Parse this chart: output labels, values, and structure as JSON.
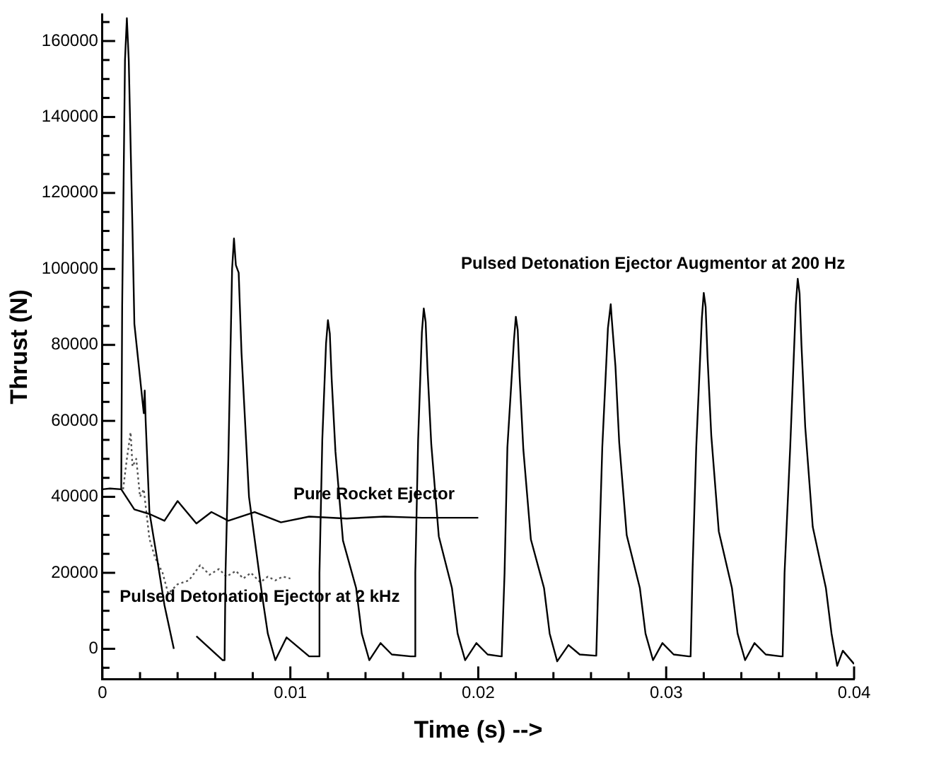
{
  "chart_data": {
    "type": "line",
    "xlabel": "Time (s) -->",
    "ylabel": "Thrust (N)",
    "xlim": [
      0,
      0.04
    ],
    "ylim": [
      -8000,
      167000
    ],
    "xticks": [
      0,
      {
        "value": 0.002,
        "label": null
      },
      {
        "value": 0.004,
        "label": null
      },
      {
        "value": 0.006,
        "label": null
      },
      {
        "value": 0.008,
        "label": null
      },
      0.01,
      {
        "value": 0.012,
        "label": null
      },
      {
        "value": 0.014,
        "label": null
      },
      {
        "value": 0.016,
        "label": null
      },
      {
        "value": 0.018,
        "label": null
      },
      0.02,
      {
        "value": 0.022,
        "label": null
      },
      {
        "value": 0.024,
        "label": null
      },
      {
        "value": 0.026,
        "label": null
      },
      {
        "value": 0.028,
        "label": null
      },
      0.03,
      {
        "value": 0.032,
        "label": null
      },
      {
        "value": 0.034,
        "label": null
      },
      {
        "value": 0.036,
        "label": null
      },
      {
        "value": 0.038,
        "label": null
      },
      0.04
    ],
    "yticks": [
      {
        "value": -5000,
        "label": null
      },
      0,
      {
        "value": 5000,
        "label": null
      },
      {
        "value": 10000,
        "label": null
      },
      {
        "value": 15000,
        "label": null
      },
      20000,
      {
        "value": 25000,
        "label": null
      },
      {
        "value": 30000,
        "label": null
      },
      {
        "value": 35000,
        "label": null
      },
      40000,
      {
        "value": 45000,
        "label": null
      },
      {
        "value": 50000,
        "label": null
      },
      {
        "value": 55000,
        "label": null
      },
      60000,
      {
        "value": 65000,
        "label": null
      },
      {
        "value": 70000,
        "label": null
      },
      {
        "value": 75000,
        "label": null
      },
      80000,
      {
        "value": 85000,
        "label": null
      },
      {
        "value": 90000,
        "label": null
      },
      {
        "value": 95000,
        "label": null
      },
      100000,
      {
        "value": 105000,
        "label": null
      },
      {
        "value": 110000,
        "label": null
      },
      {
        "value": 115000,
        "label": null
      },
      120000,
      {
        "value": 125000,
        "label": null
      },
      {
        "value": 130000,
        "label": null
      },
      {
        "value": 135000,
        "label": null
      },
      140000,
      {
        "value": 145000,
        "label": null
      },
      {
        "value": 150000,
        "label": null
      },
      {
        "value": 155000,
        "label": null
      },
      160000,
      {
        "value": 165000,
        "label": null
      }
    ],
    "grid": false,
    "legend": false,
    "marker": "none",
    "series": [
      {
        "name": "Pulsed Detonation Ejector Augmentor at 200 Hz",
        "color": "#000000",
        "line_style": "solid",
        "x": [
          0.001,
          0.00105,
          0.0012,
          0.0013,
          0.0014,
          0.0016,
          0.0017,
          0.0022,
          0.00225,
          0.0023,
          0.0025,
          0.0029,
          0.0033,
          0.0038,
          0.0046,
          0.0048,
          0.005,
          0.0064,
          0.0065,
          0.00655,
          0.0067,
          0.0069,
          0.007,
          0.0071,
          0.00725,
          0.0074,
          0.0078,
          0.0085,
          0.0088,
          0.0092,
          0.0098,
          0.011,
          0.0115,
          0.01155,
          0.0117,
          0.0119,
          0.012,
          0.0121,
          0.0122,
          0.0124,
          0.0128,
          0.0135,
          0.0138,
          0.0142,
          0.0148,
          0.0154,
          0.0164,
          0.0166,
          0.01665,
          0.0168,
          0.017,
          0.0171,
          0.0172,
          0.0173,
          0.0175,
          0.0179,
          0.0186,
          0.0189,
          0.0193,
          0.0199,
          0.0205,
          0.0212,
          0.02125,
          0.0214,
          0.02155,
          0.0219,
          0.022,
          0.0221,
          0.0222,
          0.0224,
          0.0228,
          0.0235,
          0.0238,
          0.0242,
          0.0248,
          0.0254,
          0.0262,
          0.02628,
          0.0264,
          0.0266,
          0.0269,
          0.02705,
          0.0271,
          0.0273,
          0.0275,
          0.0279,
          0.0286,
          0.0289,
          0.0293,
          0.0298,
          0.0304,
          0.0312,
          0.0313,
          0.0314,
          0.0316,
          0.0319,
          0.032,
          0.0321,
          0.0322,
          0.0324,
          0.0328,
          0.0335,
          0.0338,
          0.0342,
          0.0347,
          0.0353,
          0.0361,
          0.0362,
          0.0363,
          0.0366,
          0.0369,
          0.037,
          0.0371,
          0.0372,
          0.0374,
          0.0378,
          0.0385,
          0.0388,
          0.0391,
          0.0394,
          0.04
        ],
        "values": [
          42000,
          90000,
          155000,
          166000,
          155000,
          110000,
          85500,
          62000,
          68000,
          60000,
          36000,
          24000,
          11500,
          0,
          null,
          null,
          3300,
          -3000,
          -3000,
          20000,
          50000,
          100000,
          108000,
          101000,
          99000,
          78000,
          40000,
          14000,
          4000,
          -3000,
          3000,
          -2000,
          -2000,
          20000,
          55000,
          80400,
          86500,
          83000,
          70900,
          51900,
          28500,
          16000,
          4000,
          -3000,
          1500,
          -1500,
          -2000,
          -2000,
          20000,
          55000,
          83300,
          89600,
          86000,
          73500,
          53800,
          29600,
          16000,
          4000,
          -3000,
          1500,
          -1500,
          -2000,
          -1500,
          20000,
          53000,
          81300,
          87400,
          83900,
          71700,
          52400,
          28800,
          16000,
          4000,
          -3300,
          1000,
          -1500,
          -1800,
          -1800,
          20000,
          53000,
          84400,
          90700,
          87100,
          74400,
          54400,
          29900,
          16000,
          4000,
          -3000,
          1500,
          -1500,
          -2000,
          -2000,
          20000,
          53000,
          87100,
          93700,
          90000,
          76800,
          56200,
          30900,
          16000,
          4000,
          -3000,
          1500,
          -1500,
          -2000,
          -2000,
          20000,
          53000,
          90600,
          97400,
          93500,
          79900,
          58400,
          32100,
          16000,
          4000,
          -4500,
          -500,
          -4000
        ]
      },
      {
        "name": "Pure Rocket Ejector",
        "color": "#000000",
        "line_style": "solid",
        "x": [
          0,
          0.0004,
          0.001,
          0.0017,
          0.0025,
          0.0033,
          0.004,
          0.005,
          0.0058,
          0.0067,
          0.0081,
          0.0095,
          0.011,
          0.013,
          0.015,
          0.017,
          0.02
        ],
        "values": [
          42000,
          42200,
          42000,
          36700,
          35500,
          33700,
          38900,
          33000,
          36000,
          33700,
          36000,
          33300,
          34800,
          34300,
          34800,
          34500,
          34500
        ]
      },
      {
        "name": "Pulsed Detonation Ejector at 2 kHz",
        "color": "#555555",
        "line_style": "dotted",
        "x": [
          0.0011,
          0.0013,
          0.0015,
          0.0016,
          0.0018,
          0.002,
          0.0022,
          0.0025,
          0.0028,
          0.0032,
          0.0035,
          0.004,
          0.0046,
          0.0052,
          0.0057,
          0.0062,
          0.0066,
          0.0071,
          0.0075,
          0.0079,
          0.0084,
          0.0088,
          0.0092,
          0.0096,
          0.01
        ],
        "values": [
          42000,
          50000,
          57000,
          48000,
          50000,
          40000,
          42000,
          29000,
          24000,
          20000,
          14500,
          17000,
          18000,
          22000,
          19500,
          21000,
          19000,
          20500,
          18500,
          20000,
          17500,
          19000,
          18000,
          19000,
          18500
        ]
      }
    ]
  }
}
